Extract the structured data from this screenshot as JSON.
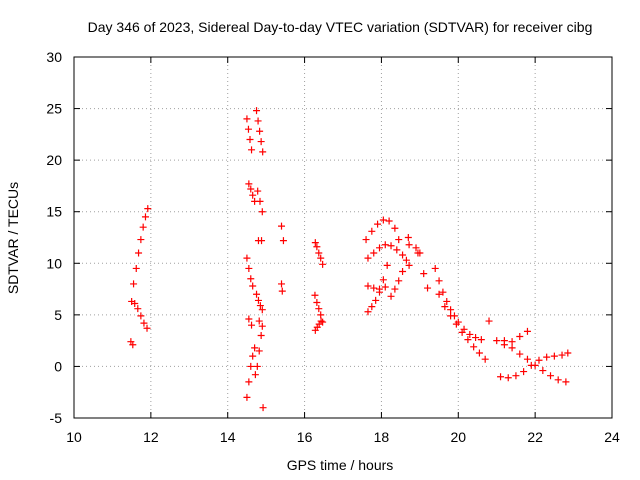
{
  "chart_data": {
    "type": "scatter",
    "title": "Day 346 of 2023, Sidereal Day-to-day VTEC variation (SDTVAR) for receiver cibg",
    "xlabel": "GPS time / hours",
    "ylabel": "SDTVAR / TECUs",
    "xlim": [
      10,
      24
    ],
    "ylim": [
      -5,
      30
    ],
    "xticks": [
      10,
      12,
      14,
      16,
      18,
      20,
      22,
      24
    ],
    "yticks": [
      -5,
      0,
      5,
      10,
      15,
      20,
      25,
      30
    ],
    "xtick_labels": [
      "10",
      "12",
      "14",
      "16",
      "18",
      "20",
      "22",
      "24"
    ],
    "ytick_labels": [
      "-5",
      "0",
      "5",
      "10",
      "15",
      "20",
      "25",
      "30"
    ],
    "grid": true,
    "marker": "+",
    "color": "#ff0000",
    "series": [
      {
        "name": "s01",
        "x": [
          11.55,
          11.62,
          11.68,
          11.74,
          11.8,
          11.86,
          11.92
        ],
        "y": [
          8.0,
          9.5,
          11.0,
          12.3,
          13.5,
          14.5,
          15.3
        ]
      },
      {
        "name": "s02",
        "x": [
          11.5,
          11.58,
          11.66,
          11.74,
          11.82,
          11.9
        ],
        "y": [
          6.3,
          6.1,
          5.6,
          4.9,
          4.2,
          3.7
        ]
      },
      {
        "name": "s03",
        "x": [
          11.48,
          11.53
        ],
        "y": [
          2.4,
          2.1
        ]
      },
      {
        "name": "s04",
        "x": [
          14.5,
          14.54,
          14.58,
          14.62
        ],
        "y": [
          24.0,
          23.0,
          22.0,
          21.0
        ]
      },
      {
        "name": "s05",
        "x": [
          14.75,
          14.79,
          14.83,
          14.87,
          14.91
        ],
        "y": [
          24.8,
          23.8,
          22.8,
          21.8,
          20.8
        ]
      },
      {
        "name": "s06",
        "x": [
          14.55,
          14.6,
          14.65,
          14.7
        ],
        "y": [
          17.7,
          17.2,
          16.6,
          16.0
        ]
      },
      {
        "name": "s07",
        "x": [
          14.78,
          14.84,
          14.9
        ],
        "y": [
          17.0,
          16.0,
          15.0
        ]
      },
      {
        "name": "s08",
        "x": [
          14.8,
          14.88
        ],
        "y": [
          12.2,
          12.2
        ]
      },
      {
        "name": "s09",
        "x": [
          14.5,
          14.55,
          14.6,
          14.65
        ],
        "y": [
          10.5,
          9.5,
          8.5,
          7.8
        ]
      },
      {
        "name": "s10",
        "x": [
          14.75,
          14.8,
          14.85,
          14.9
        ],
        "y": [
          7.0,
          6.4,
          5.9,
          5.5
        ]
      },
      {
        "name": "s11",
        "x": [
          14.55,
          14.62
        ],
        "y": [
          4.6,
          4.0
        ]
      },
      {
        "name": "s12",
        "x": [
          14.82,
          14.9
        ],
        "y": [
          4.4,
          3.9
        ]
      },
      {
        "name": "s13",
        "x": [
          14.5,
          14.55,
          14.6,
          14.65,
          14.7
        ],
        "y": [
          -3.0,
          -1.5,
          0.0,
          1.0,
          1.8
        ]
      },
      {
        "name": "s14",
        "x": [
          14.72,
          14.77,
          14.82,
          14.87
        ],
        "y": [
          -0.8,
          0.0,
          1.5,
          3.0
        ]
      },
      {
        "name": "s15",
        "x": [
          14.92,
          15.4,
          15.45,
          15.4,
          15.42
        ],
        "y": [
          -4.0,
          13.6,
          12.2,
          8.0,
          7.3
        ]
      },
      {
        "name": "s16",
        "x": [
          16.28,
          16.32,
          16.37,
          16.42,
          16.47
        ],
        "y": [
          12.0,
          11.6,
          11.0,
          10.5,
          9.9
        ]
      },
      {
        "name": "s17",
        "x": [
          16.27,
          16.32,
          16.37,
          16.42,
          16.47
        ],
        "y": [
          6.9,
          6.2,
          5.6,
          5.0,
          4.3
        ]
      },
      {
        "name": "s18",
        "x": [
          16.28,
          16.33,
          16.38,
          16.43
        ],
        "y": [
          3.5,
          3.8,
          4.1,
          4.4
        ]
      },
      {
        "name": "s19",
        "x": [
          17.6,
          17.75,
          17.9,
          18.05,
          18.2,
          18.35,
          18.45
        ],
        "y": [
          12.3,
          13.1,
          13.8,
          14.2,
          14.1,
          13.4,
          12.3
        ]
      },
      {
        "name": "s20",
        "x": [
          17.65,
          17.8,
          17.95,
          18.1,
          18.25,
          18.4,
          18.55
        ],
        "y": [
          10.5,
          11.0,
          11.5,
          11.8,
          11.7,
          11.3,
          10.8
        ]
      },
      {
        "name": "s21",
        "x": [
          17.65,
          17.8,
          17.95,
          18.1
        ],
        "y": [
          7.8,
          7.6,
          7.5,
          7.7
        ]
      },
      {
        "name": "s22",
        "x": [
          17.65,
          17.75,
          17.85,
          17.95,
          18.05,
          18.15
        ],
        "y": [
          5.3,
          5.8,
          6.4,
          7.2,
          8.4,
          9.8
        ]
      },
      {
        "name": "s23",
        "x": [
          18.25,
          18.35,
          18.45,
          18.55,
          18.65,
          18.72
        ],
        "y": [
          6.8,
          7.5,
          8.3,
          9.2,
          10.3,
          11.8
        ]
      },
      {
        "name": "s24",
        "x": [
          18.7,
          18.72,
          18.9,
          18.95
        ],
        "y": [
          12.5,
          9.8,
          11.5,
          11.0
        ]
      },
      {
        "name": "s25",
        "x": [
          19.4,
          19.5,
          19.6,
          19.7,
          19.8,
          19.9,
          20.0,
          20.15,
          20.3,
          20.45,
          20.6
        ],
        "y": [
          9.5,
          8.3,
          7.2,
          6.3,
          5.5,
          4.9,
          4.3,
          3.6,
          3.1,
          2.8,
          2.6
        ]
      },
      {
        "name": "s26",
        "x": [
          19.5,
          19.65,
          19.8,
          19.95,
          20.1,
          20.25,
          20.4,
          20.55,
          20.7
        ],
        "y": [
          7.0,
          5.8,
          4.9,
          4.1,
          3.3,
          2.6,
          1.9,
          1.3,
          0.7
        ]
      },
      {
        "name": "s27",
        "x": [
          19.0,
          19.1,
          19.2
        ],
        "y": [
          11.0,
          9.0,
          7.6
        ]
      },
      {
        "name": "s28",
        "x": [
          20.8,
          21.0,
          21.2,
          21.4,
          21.6,
          21.8
        ],
        "y": [
          4.4,
          2.5,
          2.1,
          2.4,
          2.9,
          3.4
        ]
      },
      {
        "name": "s29",
        "x": [
          21.2,
          21.4,
          21.6,
          21.8,
          22.0,
          22.2,
          22.4,
          22.6,
          22.8
        ],
        "y": [
          2.5,
          1.8,
          1.2,
          0.7,
          0.1,
          -0.4,
          -0.9,
          -1.3,
          -1.5
        ]
      },
      {
        "name": "s30",
        "x": [
          21.1,
          21.3,
          21.5,
          21.7,
          21.9,
          22.1,
          22.3,
          22.5,
          22.7,
          22.85
        ],
        "y": [
          -1.0,
          -1.1,
          -0.9,
          -0.5,
          0.1,
          0.6,
          0.9,
          1.0,
          1.1,
          1.3
        ]
      }
    ]
  }
}
